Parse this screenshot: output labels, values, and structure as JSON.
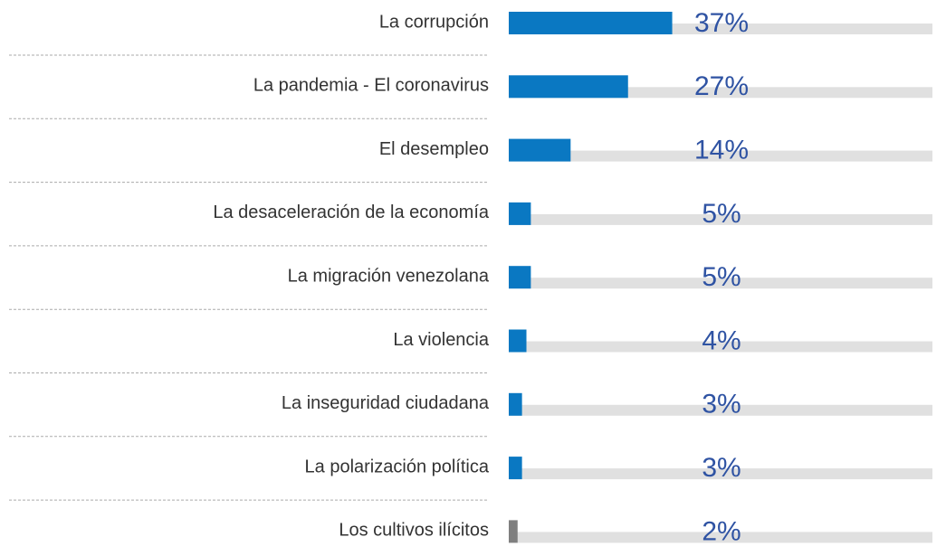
{
  "chart_data": {
    "type": "bar",
    "orientation": "horizontal",
    "categories": [
      "La corrupción",
      "La pandemia - El coronavirus",
      "El desempleo",
      "La desaceleración de la economía",
      "La migración venezolana",
      "La violencia",
      "La inseguridad ciudadana",
      "La polarización política",
      "Los cultivos ilícitos"
    ],
    "values": [
      37,
      27,
      14,
      5,
      5,
      4,
      3,
      3,
      2
    ],
    "value_labels": [
      "37%",
      "27%",
      "14%",
      "5%",
      "5%",
      "4%",
      "3%",
      "3%",
      "2%"
    ],
    "colors": [
      "#0a78c2",
      "#0a78c2",
      "#0a78c2",
      "#0a78c2",
      "#0a78c2",
      "#0a78c2",
      "#0a78c2",
      "#0a78c2",
      "#7f7f7f"
    ]
  }
}
